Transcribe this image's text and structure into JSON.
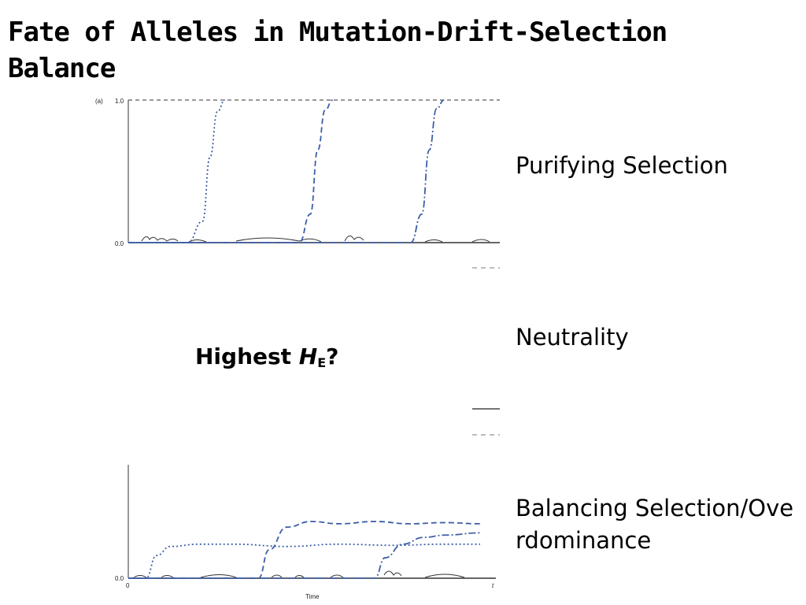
{
  "slide": {
    "title": "Fate of Alleles in Mutation-Drift-Selection Balance",
    "labels": {
      "purifying": "Purifying Selection",
      "neutrality": "Neutrality",
      "balancing": "Balancing Selection/Overdominance"
    },
    "question": {
      "prefix": "Highest ",
      "var": "H",
      "sub": "E",
      "suffix": "?"
    }
  },
  "chart_data": [
    {
      "type": "line",
      "panel": "(a)",
      "ylim": [
        0.0,
        1.0
      ],
      "y_ticks": [
        "0.0",
        "1.0"
      ],
      "series": [
        {
          "style": "dotted",
          "points": [
            [
              0,
              0
            ],
            [
              0.16,
              0
            ],
            [
              0.2,
              0.15
            ],
            [
              0.22,
              0.6
            ],
            [
              0.24,
              0.92
            ],
            [
              0.26,
              1.0
            ]
          ]
        },
        {
          "style": "dashed",
          "points": [
            [
              0,
              0
            ],
            [
              0.46,
              0
            ],
            [
              0.49,
              0.2
            ],
            [
              0.51,
              0.65
            ],
            [
              0.53,
              0.93
            ],
            [
              0.55,
              1.0
            ]
          ]
        },
        {
          "style": "dashdot",
          "points": [
            [
              0,
              0
            ],
            [
              0.76,
              0
            ],
            [
              0.79,
              0.2
            ],
            [
              0.81,
              0.65
            ],
            [
              0.83,
              0.94
            ],
            [
              0.85,
              1.0
            ]
          ]
        }
      ]
    },
    {
      "type": "line",
      "panel": "",
      "xlabel": "Time",
      "x_ticks": [
        "0",
        "t"
      ],
      "y_ticks": [
        "0.0"
      ],
      "series": [
        {
          "style": "dotted",
          "points": [
            [
              0,
              0
            ],
            [
              0.05,
              0
            ],
            [
              0.08,
              0.2
            ],
            [
              0.12,
              0.28
            ],
            [
              0.2,
              0.3
            ],
            [
              0.3,
              0.3
            ],
            [
              0.45,
              0.28
            ],
            [
              0.6,
              0.3
            ],
            [
              0.75,
              0.29
            ],
            [
              0.9,
              0.3
            ],
            [
              1.0,
              0.3
            ]
          ]
        },
        {
          "style": "dashed",
          "points": [
            [
              0,
              0
            ],
            [
              0.37,
              0
            ],
            [
              0.4,
              0.25
            ],
            [
              0.45,
              0.45
            ],
            [
              0.52,
              0.5
            ],
            [
              0.6,
              0.48
            ],
            [
              0.7,
              0.5
            ],
            [
              0.8,
              0.48
            ],
            [
              0.9,
              0.49
            ],
            [
              1.0,
              0.48
            ]
          ]
        },
        {
          "style": "dashdot",
          "points": [
            [
              0,
              0
            ],
            [
              0.7,
              0
            ],
            [
              0.73,
              0.18
            ],
            [
              0.78,
              0.3
            ],
            [
              0.84,
              0.36
            ],
            [
              0.9,
              0.38
            ],
            [
              1.0,
              0.4
            ]
          ]
        }
      ]
    }
  ]
}
